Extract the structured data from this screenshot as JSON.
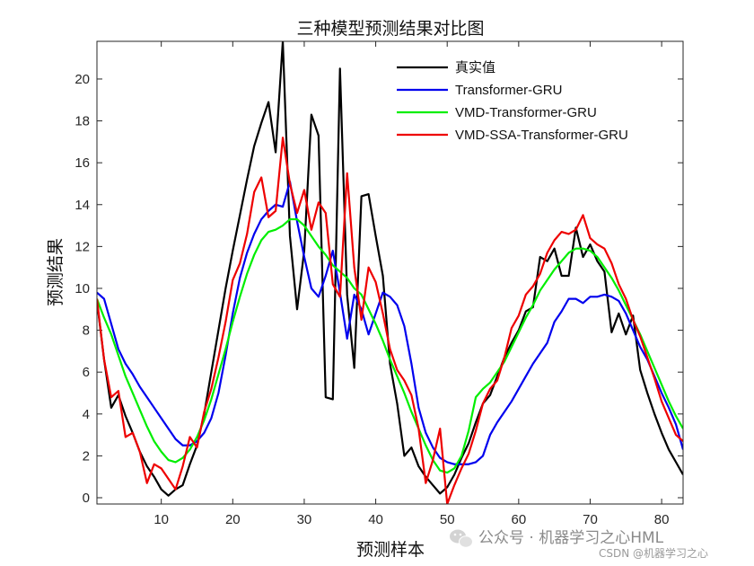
{
  "chart_data": {
    "type": "line",
    "title": "三种模型预测结果对比图",
    "xlabel": "预测样本",
    "ylabel": "预测结果",
    "xlim": [
      1,
      83
    ],
    "ylim": [
      -0.3,
      21.8
    ],
    "xticks": [
      10,
      20,
      30,
      40,
      50,
      60,
      70,
      80
    ],
    "yticks": [
      0,
      2,
      4,
      6,
      8,
      10,
      12,
      14,
      16,
      18,
      20
    ],
    "legend_position": "top-right",
    "series": [
      {
        "name": "真实值",
        "color": "#000000",
        "values": [
          9.4,
          6.6,
          4.3,
          4.9,
          3.9,
          3.1,
          2.2,
          1.5,
          1.0,
          0.4,
          0.1,
          0.4,
          0.6,
          1.6,
          2.5,
          4.0,
          6.0,
          8.0,
          10.0,
          11.8,
          13.5,
          15.2,
          16.8,
          17.9,
          18.9,
          16.5,
          21.8,
          12.5,
          9.0,
          11.8,
          18.3,
          17.3,
          4.8,
          4.7,
          20.5,
          9.7,
          6.2,
          14.4,
          14.5,
          12.5,
          10.6,
          6.4,
          4.5,
          2.0,
          2.4,
          1.5,
          1.0,
          0.6,
          0.2,
          0.5,
          1.1,
          1.9,
          2.6,
          3.6,
          4.5,
          4.9,
          5.8,
          6.7,
          7.4,
          8.0,
          8.9,
          9.1,
          11.5,
          11.3,
          11.9,
          10.6,
          10.6,
          12.9,
          11.5,
          12.1,
          11.3,
          10.8,
          7.9,
          8.8,
          7.8,
          8.7,
          6.1,
          5.0,
          4.0,
          3.1,
          2.3,
          1.7,
          1.1
        ]
      },
      {
        "name": "Transformer-GRU",
        "color": "#0000ee",
        "values": [
          9.8,
          9.5,
          8.3,
          7.1,
          6.4,
          5.9,
          5.3,
          4.8,
          4.3,
          3.8,
          3.3,
          2.8,
          2.5,
          2.5,
          2.7,
          3.1,
          3.8,
          5.0,
          6.8,
          8.8,
          10.5,
          11.7,
          12.6,
          13.3,
          13.7,
          14.0,
          13.9,
          15.1,
          13.2,
          11.5,
          10.0,
          9.6,
          10.6,
          11.8,
          9.8,
          7.6,
          9.7,
          9.0,
          7.8,
          8.8,
          9.8,
          9.6,
          9.2,
          8.2,
          6.4,
          4.3,
          3.1,
          2.4,
          1.9,
          1.7,
          1.6,
          1.6,
          1.6,
          1.7,
          2.0,
          3.0,
          3.6,
          4.1,
          4.6,
          5.2,
          5.8,
          6.4,
          6.9,
          7.4,
          8.4,
          8.9,
          9.5,
          9.5,
          9.3,
          9.6,
          9.6,
          9.7,
          9.6,
          9.4,
          8.8,
          8.0,
          7.2,
          6.6,
          5.8,
          5.0,
          4.3,
          3.5,
          2.3
        ]
      },
      {
        "name": "VMD-Transformer-GRU",
        "color": "#00ee00",
        "values": [
          9.5,
          8.6,
          7.8,
          6.8,
          5.8,
          5.0,
          4.2,
          3.4,
          2.7,
          2.2,
          1.8,
          1.7,
          1.9,
          2.3,
          2.9,
          3.7,
          4.7,
          5.9,
          7.1,
          8.4,
          9.6,
          10.7,
          11.6,
          12.3,
          12.7,
          12.8,
          13.0,
          13.3,
          13.3,
          13.0,
          12.5,
          12.0,
          11.6,
          11.1,
          10.8,
          10.5,
          10.0,
          9.7,
          9.0,
          8.3,
          7.5,
          6.6,
          5.8,
          5.0,
          4.1,
          3.3,
          2.5,
          1.8,
          1.3,
          1.2,
          1.4,
          2.0,
          3.2,
          4.8,
          5.2,
          5.5,
          6.0,
          6.5,
          7.2,
          7.9,
          8.6,
          9.2,
          9.9,
          10.4,
          10.9,
          11.3,
          11.7,
          11.9,
          11.9,
          11.8,
          11.5,
          11.0,
          10.5,
          9.9,
          9.2,
          8.5,
          7.8,
          7.0,
          6.2,
          5.4,
          4.6,
          3.9,
          3.3
        ]
      },
      {
        "name": "VMD-SSA-Transformer-GRU",
        "color": "#ee0000",
        "values": [
          9.5,
          6.6,
          4.8,
          5.1,
          2.9,
          3.1,
          2.2,
          0.7,
          1.6,
          1.4,
          0.9,
          0.4,
          1.5,
          2.9,
          2.4,
          4.1,
          5.2,
          6.7,
          8.4,
          10.4,
          11.2,
          12.6,
          14.6,
          15.3,
          13.4,
          13.7,
          17.2,
          15.0,
          13.6,
          14.7,
          12.8,
          14.1,
          13.6,
          10.2,
          9.6,
          15.5,
          11.0,
          8.5,
          11.0,
          10.3,
          8.8,
          7.1,
          6.1,
          5.6,
          4.9,
          3.3,
          0.7,
          1.8,
          3.3,
          -0.3,
          0.6,
          1.4,
          2.1,
          3.2,
          4.5,
          5.2,
          5.6,
          6.7,
          8.1,
          8.7,
          9.7,
          10.1,
          10.7,
          11.7,
          12.3,
          12.7,
          12.6,
          12.8,
          13.5,
          12.4,
          12.1,
          11.9,
          11.2,
          10.2,
          9.5,
          8.5,
          7.7,
          6.7,
          5.7,
          4.6,
          3.8,
          3.0,
          2.7
        ]
      }
    ]
  },
  "watermark": {
    "logo_icon": "wechat-icon",
    "text": "公众号 · 机器学习之心HML",
    "sub": "CSDN @机器学习之心"
  }
}
